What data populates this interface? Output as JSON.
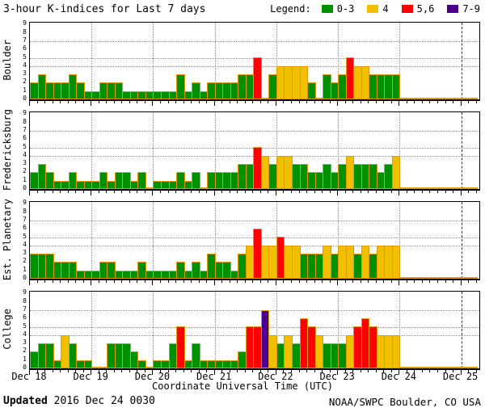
{
  "title": "3-hour K-indices for Last 7 days",
  "legend": {
    "label": "Legend:",
    "items": [
      {
        "label": "0-3",
        "color": "#009000"
      },
      {
        "label": "4",
        "color": "#f0c000"
      },
      {
        "label": "5,6",
        "color": "#ff0000"
      },
      {
        "label": "7-9",
        "color": "#4a008c"
      }
    ]
  },
  "colors": {
    "green": "#009000",
    "yellow": "#f0c000",
    "red": "#ff0000",
    "purple": "#4a008c",
    "outline": "#e09900"
  },
  "x_axis": {
    "labels": [
      "Dec 18",
      "Dec 19",
      "Dec 20",
      "Dec 21",
      "Dec 22",
      "Dec 23",
      "Dec 24",
      "Dec 25"
    ],
    "title": "Coordinate Universal Time (UTC)"
  },
  "y_axis": {
    "tick_labels": [
      "0",
      "1",
      "2",
      "3",
      "4",
      "5",
      "6",
      "7",
      "8",
      "9"
    ],
    "min": 0,
    "max": 9,
    "dotted_gridlines_at": [
      4,
      5,
      7
    ]
  },
  "chart_data": {
    "type": "bar",
    "description": "3-hour planetary/station K-index values, 8 bars per day, Dec 18 through Dec 24 (UTC). Color classes: 0-3 green, 4 yellow, 5-6 red, 7-9 purple. Zero values drawn as tiny stubs.",
    "x_days": [
      "Dec 18",
      "Dec 19",
      "Dec 20",
      "Dec 21",
      "Dec 22",
      "Dec 23",
      "Dec 24"
    ],
    "bars_per_day": 8,
    "trailing_zero_slots": 2,
    "panels": [
      {
        "station": "Boulder",
        "values": [
          2,
          3,
          2,
          2,
          2,
          3,
          2,
          1,
          1,
          2,
          2,
          2,
          1,
          1,
          1,
          1,
          1,
          1,
          1,
          3,
          1,
          2,
          1,
          2,
          2,
          2,
          2,
          3,
          3,
          5,
          0,
          3,
          4,
          4,
          4,
          4,
          2,
          0,
          3,
          2,
          3,
          5,
          4,
          4,
          3,
          3,
          3,
          3,
          0,
          0,
          0,
          0,
          0,
          0,
          0,
          0
        ]
      },
      {
        "station": "Fredericksburg",
        "values": [
          2,
          3,
          2,
          1,
          1,
          2,
          1,
          1,
          1,
          2,
          1,
          2,
          2,
          1,
          2,
          0,
          1,
          1,
          1,
          2,
          1,
          2,
          0,
          2,
          2,
          2,
          2,
          3,
          3,
          5,
          4,
          3,
          4,
          4,
          3,
          3,
          2,
          2,
          3,
          2,
          3,
          4,
          3,
          3,
          3,
          2,
          3,
          4,
          0,
          0,
          0,
          0,
          0,
          0,
          0,
          0
        ]
      },
      {
        "station": "Est. Planetary",
        "values": [
          3,
          3,
          3,
          2,
          2,
          2,
          1,
          1,
          1,
          2,
          2,
          1,
          1,
          1,
          2,
          1,
          1,
          1,
          1,
          2,
          1,
          2,
          1,
          3,
          2,
          2,
          1,
          3,
          4,
          6,
          4,
          4,
          5,
          4,
          4,
          3,
          3,
          3,
          4,
          3,
          4,
          4,
          3,
          4,
          3,
          4,
          4,
          4,
          0,
          0,
          0,
          0,
          0,
          0,
          0,
          0
        ]
      },
      {
        "station": "College",
        "values": [
          2,
          3,
          3,
          1,
          4,
          3,
          1,
          1,
          0,
          0,
          3,
          3,
          3,
          2,
          1,
          0,
          1,
          1,
          3,
          5,
          1,
          3,
          1,
          1,
          1,
          1,
          1,
          2,
          5,
          5,
          7,
          4,
          3,
          4,
          3,
          6,
          5,
          4,
          3,
          3,
          3,
          4,
          5,
          6,
          5,
          4,
          4,
          4,
          0,
          0,
          0,
          0,
          0,
          0,
          0,
          0
        ]
      }
    ]
  },
  "footer": {
    "updated_label": "Updated",
    "updated_value": " 2016 Dec 24 0030",
    "source": "NOAA/SWPC Boulder, CO USA"
  }
}
